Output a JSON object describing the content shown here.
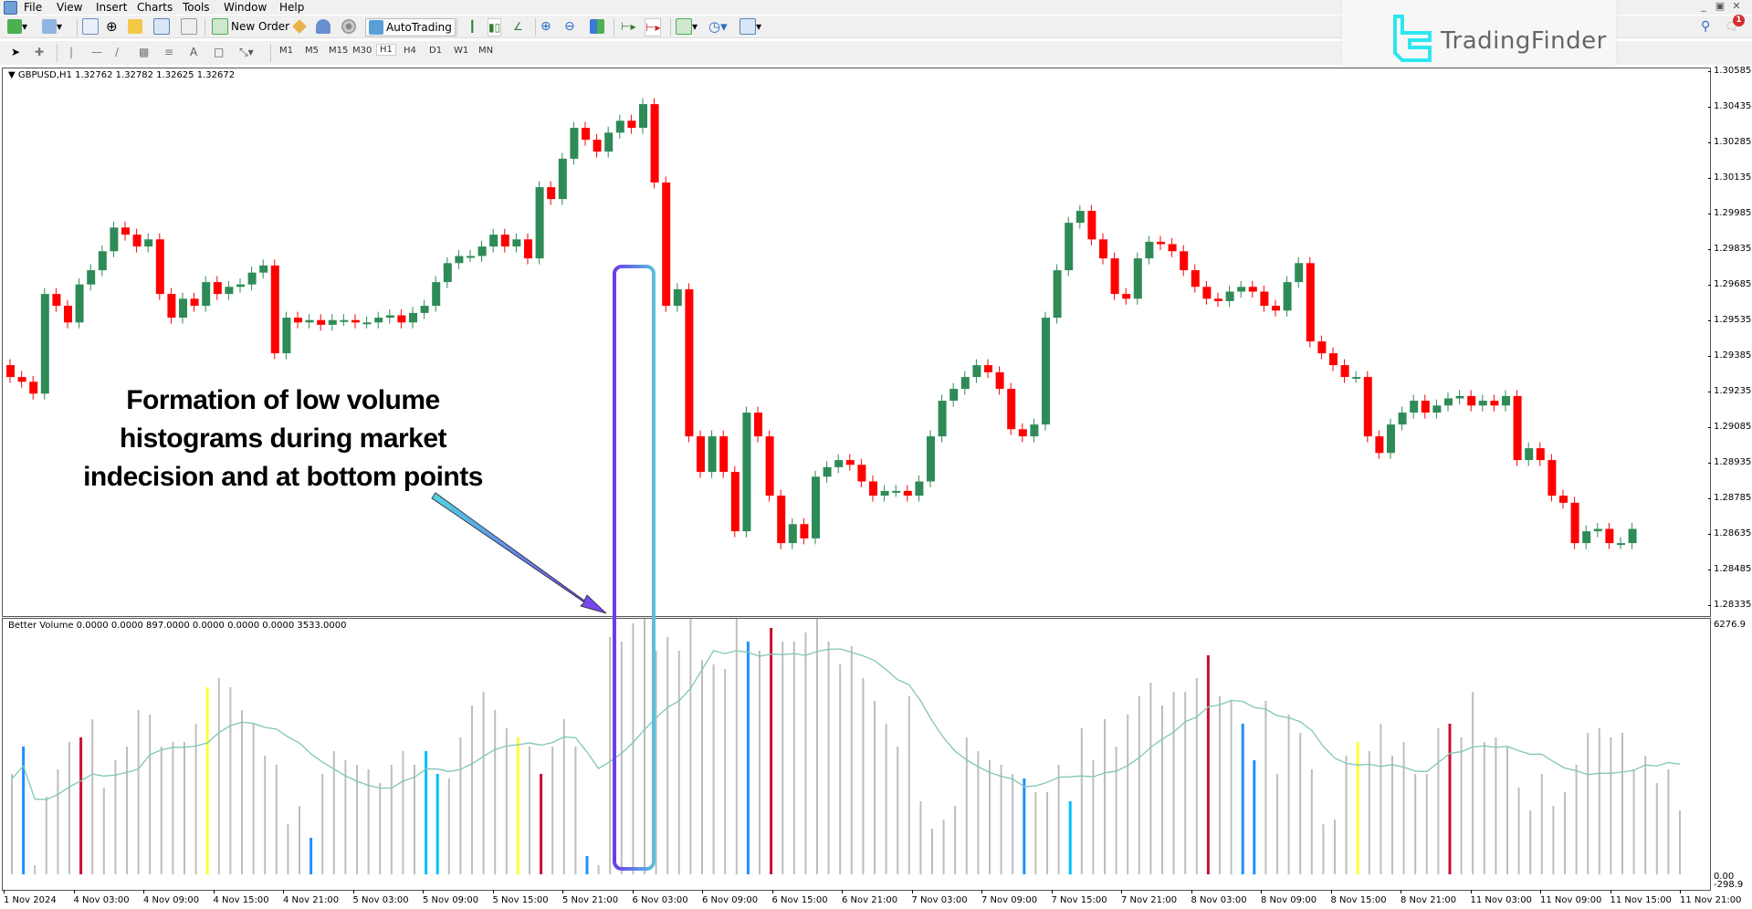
{
  "menu": {
    "items": [
      "File",
      "View",
      "Insert",
      "Charts",
      "Tools",
      "Window",
      "Help"
    ]
  },
  "window_controls": [
    "minimize",
    "restore",
    "close"
  ],
  "toolbar": {
    "new_order_label": "New Order",
    "autotrading_label": "AutoTrading",
    "timeframes": [
      "M1",
      "M5",
      "M15",
      "M30",
      "H1",
      "H4",
      "D1",
      "W1",
      "MN"
    ],
    "active_timeframe": "H1",
    "notification_count": "1"
  },
  "brand": {
    "name": "TradingFinder",
    "accent": "#2ee6f0"
  },
  "chart": {
    "header": "GBPUSD,H1  1.32762 1.32782 1.32625 1.32672",
    "symbol": "GBPUSD",
    "timeframe": "H1",
    "ohlc": {
      "open": "1.32762",
      "high": "1.32782",
      "low": "1.32625",
      "close": "1.32672"
    },
    "price_ticks": [
      "1.30585",
      "1.30435",
      "1.30285",
      "1.30135",
      "1.29985",
      "1.29835",
      "1.29685",
      "1.29535",
      "1.29385",
      "1.29235",
      "1.29085",
      "1.28935",
      "1.28785",
      "1.28635",
      "1.28485",
      "1.28335"
    ],
    "bull_color": "#2e8b57",
    "bear_color": "#ff0000"
  },
  "indicator": {
    "header": "Better Volume 0.0000 0.0000 897.0000 0.0000 0.0000 0.0000 3533.0000",
    "name": "Better Volume",
    "values": [
      "0.0000",
      "0.0000",
      "897.0000",
      "0.0000",
      "0.0000",
      "0.0000",
      "3533.0000"
    ],
    "axis_max": "6276.9",
    "axis_zero": "0.00",
    "axis_min": "-298.9",
    "colors": {
      "neutral": "#bdbdbd",
      "climax_up": "#1e90ff",
      "climax_down": "#c8102e",
      "low_volume": "#ffff33",
      "churn": "#00bfff",
      "ma": "#7fc6b8"
    }
  },
  "time_axis": [
    "1 Nov 2024",
    "4 Nov 03:00",
    "4 Nov 09:00",
    "4 Nov 15:00",
    "4 Nov 21:00",
    "5 Nov 03:00",
    "5 Nov 09:00",
    "5 Nov 15:00",
    "5 Nov 21:00",
    "6 Nov 03:00",
    "6 Nov 09:00",
    "6 Nov 15:00",
    "6 Nov 21:00",
    "7 Nov 03:00",
    "7 Nov 09:00",
    "7 Nov 15:00",
    "7 Nov 21:00",
    "8 Nov 03:00",
    "8 Nov 09:00",
    "8 Nov 15:00",
    "8 Nov 21:00",
    "11 Nov 03:00",
    "11 Nov 09:00",
    "11 Nov 15:00",
    "11 Nov 21:00"
  ],
  "annotation": {
    "lines": [
      "Formation of low volume",
      "histograms during market",
      "indecision and at bottom points"
    ],
    "arrow_colors": [
      "#4fd3e0",
      "#7b3cf0"
    ],
    "highlight_box_colors": [
      "#6a3de8",
      "#5bc0de"
    ]
  }
}
